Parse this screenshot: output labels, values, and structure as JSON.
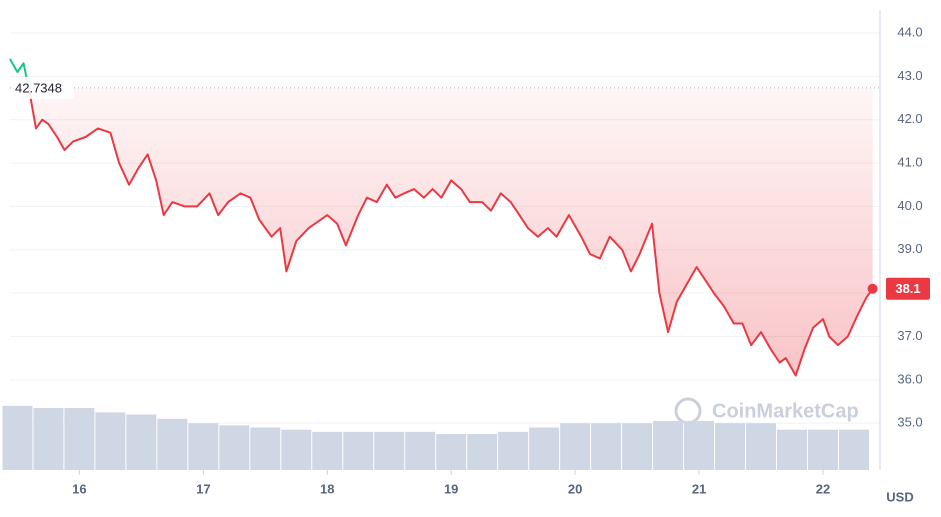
{
  "chart_data": {
    "type": "line",
    "series": [
      {
        "color": "#ea3943",
        "above_color": "#16c784",
        "x": [
          15.44,
          15.5,
          15.55,
          15.6,
          15.65,
          15.7,
          15.75,
          15.82,
          15.88,
          15.95,
          16.05,
          16.15,
          16.25,
          16.32,
          16.4,
          16.48,
          16.55,
          16.62,
          16.68,
          16.75,
          16.85,
          16.95,
          17.05,
          17.12,
          17.2,
          17.3,
          17.38,
          17.45,
          17.55,
          17.62,
          17.67,
          17.75,
          17.85,
          17.95,
          18.0,
          18.08,
          18.15,
          18.25,
          18.32,
          18.4,
          18.48,
          18.55,
          18.62,
          18.7,
          18.78,
          18.85,
          18.92,
          19.0,
          19.08,
          19.15,
          19.25,
          19.32,
          19.4,
          19.48,
          19.55,
          19.62,
          19.7,
          19.78,
          19.85,
          19.95,
          20.05,
          20.12,
          20.2,
          20.28,
          20.38,
          20.45,
          20.52,
          20.62,
          20.68,
          20.75,
          20.82,
          20.9,
          20.98,
          21.05,
          21.12,
          21.2,
          21.28,
          21.35,
          21.42,
          21.5,
          21.58,
          21.65,
          21.7,
          21.78,
          21.85,
          21.92,
          22.0,
          22.05,
          22.12,
          22.2,
          22.28,
          22.35,
          22.4
        ],
        "values": [
          43.4,
          43.1,
          43.3,
          42.6,
          41.8,
          42.0,
          41.9,
          41.6,
          41.3,
          41.5,
          41.6,
          41.8,
          41.7,
          41.0,
          40.5,
          40.9,
          41.2,
          40.6,
          39.8,
          40.1,
          40.0,
          40.0,
          40.3,
          39.8,
          40.1,
          40.3,
          40.2,
          39.7,
          39.3,
          39.5,
          38.5,
          39.2,
          39.5,
          39.7,
          39.8,
          39.6,
          39.1,
          39.8,
          40.2,
          40.1,
          40.5,
          40.2,
          40.3,
          40.4,
          40.2,
          40.4,
          40.2,
          40.6,
          40.4,
          40.1,
          40.1,
          39.9,
          40.3,
          40.1,
          39.8,
          39.5,
          39.3,
          39.5,
          39.3,
          39.8,
          39.3,
          38.9,
          38.8,
          39.3,
          39.0,
          38.5,
          38.9,
          39.6,
          38.0,
          37.1,
          37.8,
          38.2,
          38.6,
          38.3,
          38.0,
          37.7,
          37.3,
          37.3,
          36.8,
          37.1,
          36.7,
          36.4,
          36.5,
          36.1,
          36.7,
          37.2,
          37.4,
          37.0,
          36.8,
          37.0,
          37.5,
          37.9,
          38.1
        ]
      }
    ],
    "baseline": 42.7348,
    "volume": {
      "color": "#cfd6e4",
      "x": [
        15.5,
        15.75,
        16,
        16.25,
        16.5,
        16.75,
        17,
        17.25,
        17.5,
        17.75,
        18,
        18.25,
        18.5,
        18.75,
        19,
        19.25,
        19.5,
        19.75,
        20,
        20.25,
        20.5,
        20.75,
        21,
        21.25,
        21.5,
        21.75,
        22,
        22.25
      ],
      "values": [
        35.4,
        35.35,
        35.35,
        35.25,
        35.2,
        35.1,
        35.0,
        34.95,
        34.9,
        34.85,
        34.8,
        34.8,
        34.8,
        34.8,
        34.75,
        34.75,
        34.8,
        34.9,
        35.0,
        35.0,
        35.0,
        35.05,
        35.05,
        35.0,
        35.0,
        34.85,
        34.85,
        34.85
      ]
    },
    "xlim": [
      15.44,
      22.46
    ],
    "xticks": [
      16,
      17,
      18,
      19,
      20,
      21,
      22
    ],
    "ylim": [
      33.92,
      44.53
    ],
    "yticks": [
      {
        "value": 35,
        "label": "35.0"
      },
      {
        "value": 36,
        "label": "36.0"
      },
      {
        "value": 37,
        "label": "37.0"
      },
      {
        "value": 38,
        "label": "38.0"
      },
      {
        "value": 39,
        "label": "39.0"
      },
      {
        "value": 40,
        "label": "40.0"
      },
      {
        "value": 41,
        "label": "41.0"
      },
      {
        "value": 42,
        "label": "42.0"
      },
      {
        "value": 43,
        "label": "43.0"
      },
      {
        "value": 44,
        "label": "44.0"
      }
    ],
    "grid": true,
    "unit": "USD",
    "watermark": "CoinMarketCap"
  }
}
